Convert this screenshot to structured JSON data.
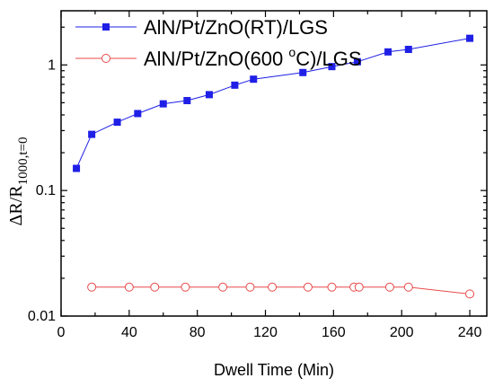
{
  "chart_data": {
    "type": "line",
    "xlabel": "Dwell Time (Min)",
    "ylabel": {
      "base": "ΔR/R",
      "subscript": "1000,t=0"
    },
    "xlim": [
      0,
      250
    ],
    "ylim": [
      0.01,
      2.7
    ],
    "yscale": "log",
    "x_ticks": [
      0,
      40,
      80,
      120,
      160,
      200,
      240
    ],
    "y_ticks": [
      {
        "value": 0.01,
        "label": "0.01"
      },
      {
        "value": 0.1,
        "label": "0.1"
      },
      {
        "value": 1,
        "label": "1"
      }
    ],
    "grid": false,
    "legend_position": "top-left",
    "series": [
      {
        "name": "AlN/Pt/ZnO(RT)/LGS",
        "name_parts": {
          "pre": "AlN/Pt/ZnO(RT)/LGS",
          "sup": "",
          "post": ""
        },
        "color": "#1f1fe6",
        "marker": "filled-square",
        "x": [
          9,
          18,
          33,
          45,
          60,
          74,
          87,
          102,
          113,
          142,
          159,
          174,
          192,
          204,
          240
        ],
        "y": [
          0.15,
          0.28,
          0.35,
          0.41,
          0.49,
          0.52,
          0.58,
          0.69,
          0.77,
          0.87,
          0.97,
          1.06,
          1.27,
          1.33,
          1.63
        ]
      },
      {
        "name": "AlN/Pt/ZnO(600 oC)/LGS",
        "name_parts": {
          "pre": "AlN/Pt/ZnO(600 ",
          "sup": "o",
          "post": "C)/LGS"
        },
        "color": "#e84a4a",
        "marker": "open-circle",
        "x": [
          18,
          40,
          55,
          73,
          95,
          111,
          124,
          145,
          159,
          172,
          175,
          193,
          204,
          240
        ],
        "y": [
          0.017,
          0.017,
          0.017,
          0.017,
          0.017,
          0.017,
          0.017,
          0.017,
          0.017,
          0.017,
          0.017,
          0.017,
          0.017,
          0.015
        ]
      }
    ]
  }
}
